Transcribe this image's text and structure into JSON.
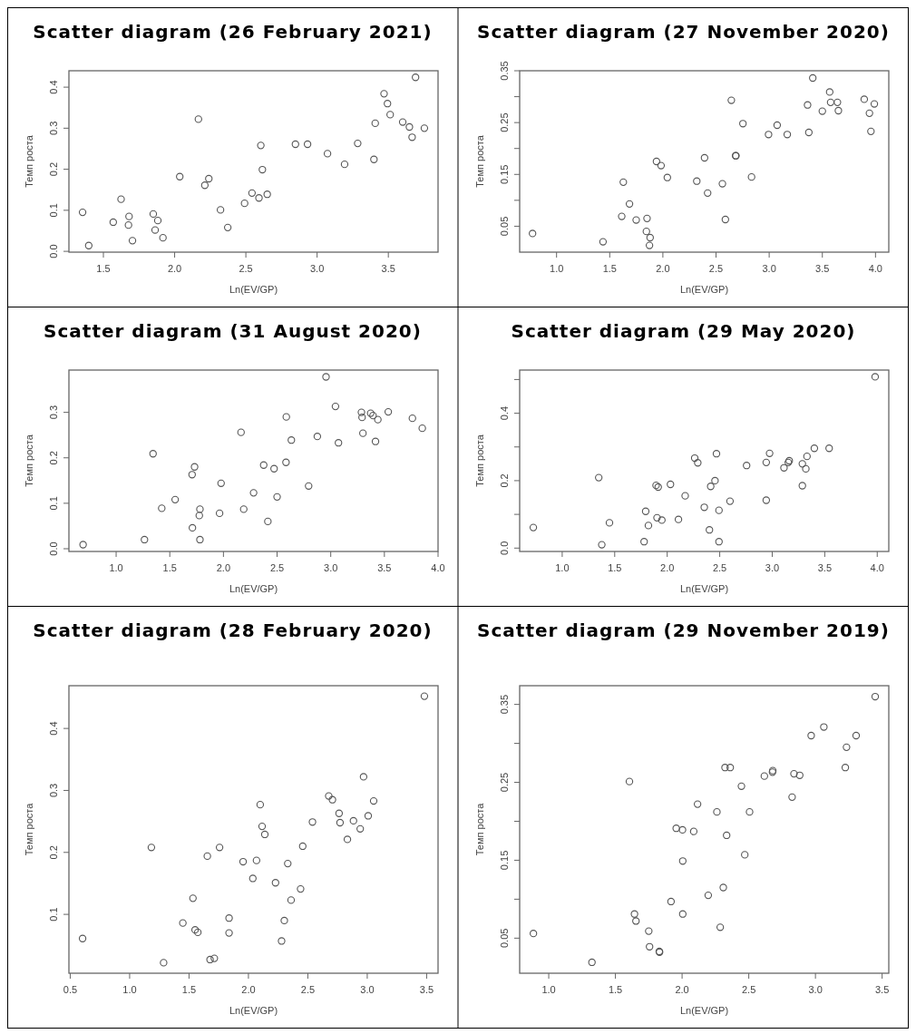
{
  "chart_data": [
    {
      "type": "scatter",
      "title": "Scatter diagram (26 February 2021)",
      "xlabel": "Ln(EV/GP)",
      "ylabel": "Темп роста",
      "color": "#555555",
      "marker": "circle",
      "x": [
        1.354,
        1.397,
        1.569,
        1.624,
        1.68,
        1.676,
        1.704,
        1.85,
        1.863,
        1.882,
        1.918,
        2.036,
        2.167,
        2.212,
        2.24,
        2.322,
        2.373,
        2.491,
        2.543,
        2.592,
        2.605,
        2.616,
        2.65,
        2.848,
        2.933,
        3.073,
        3.193,
        3.285,
        3.399,
        3.408,
        3.47,
        3.494,
        3.513,
        3.601,
        3.648,
        3.667,
        3.691,
        3.753
      ],
      "values": [
        0.095,
        0.014,
        0.071,
        0.127,
        0.085,
        0.064,
        0.026,
        0.091,
        0.052,
        0.075,
        0.033,
        0.182,
        0.322,
        0.161,
        0.177,
        0.101,
        0.058,
        0.117,
        0.142,
        0.13,
        0.258,
        0.199,
        0.139,
        0.261,
        0.261,
        0.238,
        0.212,
        0.263,
        0.224,
        0.312,
        0.384,
        0.36,
        0.333,
        0.315,
        0.303,
        0.278,
        0.424,
        0.3
      ],
      "xlim": [
        1.258,
        3.849
      ],
      "ylim": [
        -0.002,
        0.44
      ],
      "xticks": [
        1.5,
        {
          "value": 2,
          "label": "2.0"
        },
        2.5,
        {
          "value": 3,
          "label": "3.0"
        },
        3.5
      ],
      "yticks": [
        {
          "value": 0,
          "label": "0.0"
        },
        0.1,
        0.2,
        0.3,
        0.4
      ]
    },
    {
      "type": "scatter",
      "title": "Scatter diagram (27 November 2020)",
      "xlabel": "Ln(EV/GP)",
      "ylabel": "Темп роста",
      "color": "#555555",
      "marker": "circle",
      "x": [
        0.774,
        1.437,
        1.628,
        1.613,
        1.686,
        1.749,
        1.851,
        1.845,
        1.88,
        1.874,
        1.94,
        1.983,
        2.042,
        2.319,
        2.392,
        2.421,
        2.56,
        2.588,
        2.644,
        2.684,
        2.687,
        2.753,
        2.834,
        2.994,
        3.075,
        3.17,
        3.361,
        3.373,
        3.41,
        3.5,
        3.569,
        3.578,
        3.642,
        3.651,
        3.894,
        3.943,
        3.957,
        3.989
      ],
      "values": [
        0.036,
        0.02,
        0.135,
        0.069,
        0.093,
        0.062,
        0.065,
        0.04,
        0.028,
        0.013,
        0.175,
        0.167,
        0.144,
        0.137,
        0.182,
        0.114,
        0.132,
        0.063,
        0.293,
        0.186,
        0.186,
        0.248,
        0.145,
        0.227,
        0.245,
        0.227,
        0.284,
        0.231,
        0.336,
        0.272,
        0.309,
        0.289,
        0.289,
        0.273,
        0.295,
        0.268,
        0.233,
        0.286
      ],
      "xlim": [
        0.653,
        4.125
      ],
      "ylim": [
        0,
        0.35
      ],
      "xticks": [
        {
          "value": 1,
          "label": "1.0"
        },
        1.5,
        {
          "value": 2,
          "label": "2.0"
        },
        2.5,
        {
          "value": 3,
          "label": "3.0"
        },
        3.5,
        {
          "value": 4,
          "label": "4.0"
        }
      ],
      "yticks": [
        0.05,
        {
          "value": 0.1,
          "label": null
        },
        0.15,
        {
          "value": 0.2,
          "label": null
        },
        0.25,
        {
          "value": 0.3,
          "label": null
        },
        0.35
      ]
    },
    {
      "type": "scatter",
      "title": "Scatter diagram (31 August 2020)",
      "xlabel": "Ln(EV/GP)",
      "ylabel": "Темп роста",
      "color": "#555555",
      "marker": "circle",
      "x": [
        0.692,
        1.264,
        1.344,
        1.425,
        1.55,
        1.708,
        1.731,
        1.711,
        1.781,
        1.775,
        1.781,
        1.978,
        1.964,
        2.164,
        2.189,
        2.281,
        2.375,
        2.414,
        2.472,
        2.5,
        2.586,
        2.583,
        2.633,
        2.794,
        2.875,
        2.956,
        3.044,
        3.072,
        3.286,
        3.292,
        3.3,
        3.372,
        3.394,
        3.439,
        3.417,
        3.536,
        3.761,
        3.853
      ],
      "values": [
        0.009,
        0.02,
        0.209,
        0.089,
        0.108,
        0.163,
        0.18,
        0.046,
        0.087,
        0.073,
        0.02,
        0.144,
        0.078,
        0.256,
        0.087,
        0.123,
        0.184,
        0.06,
        0.176,
        0.114,
        0.29,
        0.19,
        0.239,
        0.138,
        0.247,
        0.378,
        0.313,
        0.233,
        0.3,
        0.289,
        0.254,
        0.298,
        0.293,
        0.284,
        0.236,
        0.301,
        0.287,
        0.265
      ],
      "xlim": [
        0.56,
        4.0
      ],
      "ylim": [
        -0.006,
        0.393
      ],
      "xticks": [
        {
          "value": 1,
          "label": "1.0"
        },
        1.5,
        {
          "value": 2,
          "label": "2.0"
        },
        2.5,
        {
          "value": 3,
          "label": "3.0"
        },
        3.5,
        {
          "value": 4,
          "label": "4.0"
        }
      ],
      "yticks": [
        {
          "value": 0,
          "label": "0.0"
        },
        0.1,
        0.2,
        0.3
      ]
    },
    {
      "type": "scatter",
      "title": "Scatter diagram (29 May 2020)",
      "xlabel": "Ln(EV/GP)",
      "ylabel": "Темп роста",
      "color": "#555555",
      "marker": "circle",
      "x": [
        0.725,
        1.348,
        1.377,
        1.45,
        1.78,
        1.795,
        1.821,
        1.894,
        1.914,
        1.903,
        1.949,
        2.031,
        2.107,
        2.171,
        2.262,
        2.291,
        2.353,
        2.402,
        2.414,
        2.455,
        2.469,
        2.493,
        2.493,
        2.598,
        2.756,
        2.943,
        2.943,
        2.975,
        3.112,
        3.162,
        3.153,
        3.287,
        3.287,
        3.32,
        3.331,
        3.401,
        3.542,
        3.98
      ],
      "values": [
        0.061,
        0.209,
        0.01,
        0.075,
        0.019,
        0.109,
        0.067,
        0.186,
        0.181,
        0.09,
        0.083,
        0.189,
        0.085,
        0.155,
        0.267,
        0.253,
        0.121,
        0.054,
        0.183,
        0.2,
        0.28,
        0.112,
        0.019,
        0.139,
        0.245,
        0.254,
        0.142,
        0.281,
        0.238,
        0.259,
        0.254,
        0.25,
        0.185,
        0.235,
        0.272,
        0.296,
        0.296,
        0.508
      ],
      "xlim": [
        0.595,
        4.11
      ],
      "ylim": [
        -0.01,
        0.528
      ],
      "xticks": [
        {
          "value": 1,
          "label": "1.0"
        },
        1.5,
        {
          "value": 2,
          "label": "2.0"
        },
        2.5,
        {
          "value": 3,
          "label": "3.0"
        },
        3.5,
        {
          "value": 4,
          "label": "4.0"
        }
      ],
      "yticks": [
        {
          "value": 0,
          "label": "0.0"
        },
        {
          "value": 0.1,
          "label": null
        },
        0.2,
        {
          "value": 0.3,
          "label": null
        },
        0.4,
        {
          "value": 0.5,
          "label": null
        }
      ]
    },
    {
      "type": "scatter",
      "title": "Scatter diagram (28 February 2020)",
      "xlabel": "Ln(EV/GP)",
      "ylabel": "Темп роста",
      "color": "#555555",
      "marker": "circle",
      "x": [
        0.604,
        1.183,
        1.286,
        1.448,
        1.533,
        1.551,
        1.574,
        1.654,
        1.677,
        1.713,
        1.757,
        1.837,
        1.837,
        1.955,
        2.037,
        2.068,
        2.099,
        2.115,
        2.138,
        2.228,
        2.279,
        2.302,
        2.331,
        2.359,
        2.439,
        2.457,
        2.539,
        2.676,
        2.707,
        2.763,
        2.771,
        2.833,
        2.884,
        2.941,
        2.969,
        3.008,
        3.054,
        3.481
      ],
      "values": [
        0.061,
        0.208,
        0.022,
        0.086,
        0.126,
        0.075,
        0.071,
        0.194,
        0.027,
        0.029,
        0.208,
        0.094,
        0.07,
        0.185,
        0.158,
        0.187,
        0.277,
        0.242,
        0.229,
        0.151,
        0.057,
        0.09,
        0.182,
        0.123,
        0.141,
        0.21,
        0.249,
        0.291,
        0.285,
        0.263,
        0.248,
        0.221,
        0.251,
        0.238,
        0.322,
        0.259,
        0.283,
        0.452
      ],
      "xlim": [
        0.489,
        3.596
      ],
      "ylim": [
        0.005,
        0.469
      ],
      "xticks": [
        0.5,
        {
          "value": 1,
          "label": "1.0"
        },
        1.5,
        {
          "value": 2,
          "label": "2.0"
        },
        2.5,
        {
          "value": 3,
          "label": "3.0"
        },
        3.5
      ],
      "yticks": [
        0.1,
        0.2,
        0.3,
        0.4
      ]
    },
    {
      "type": "scatter",
      "title": "Scatter diagram (29 November 2019)",
      "xlabel": "Ln(EV/GP)",
      "ylabel": "Темп роста",
      "color": "#555555",
      "marker": "circle",
      "x": [
        0.885,
        1.324,
        1.605,
        1.643,
        1.654,
        1.75,
        1.756,
        1.829,
        1.831,
        1.917,
        1.956,
        2.003,
        2.005,
        2.005,
        2.087,
        2.116,
        2.196,
        2.261,
        2.286,
        2.309,
        2.322,
        2.334,
        2.361,
        2.445,
        2.47,
        2.506,
        2.617,
        2.678,
        2.68,
        2.825,
        2.839,
        2.882,
        2.968,
        3.063,
        3.224,
        3.233,
        3.305,
        3.448
      ],
      "values": [
        0.056,
        0.019,
        0.251,
        0.081,
        0.072,
        0.059,
        0.039,
        0.033,
        0.032,
        0.097,
        0.191,
        0.189,
        0.149,
        0.081,
        0.187,
        0.222,
        0.105,
        0.212,
        0.064,
        0.115,
        0.269,
        0.182,
        0.269,
        0.245,
        0.157,
        0.212,
        0.258,
        0.263,
        0.265,
        0.231,
        0.261,
        0.259,
        0.31,
        0.321,
        0.269,
        0.295,
        0.31,
        0.36
      ],
      "xlim": [
        0.782,
        3.55
      ],
      "ylim": [
        0.005,
        0.374
      ],
      "xticks": [
        {
          "value": 1,
          "label": "1.0"
        },
        1.5,
        {
          "value": 2,
          "label": "2.0"
        },
        2.5,
        {
          "value": 3,
          "label": "3.0"
        },
        3.5
      ],
      "yticks": [
        0.05,
        {
          "value": 0.1,
          "label": null
        },
        0.15,
        {
          "value": 0.2,
          "label": null
        },
        0.25,
        {
          "value": 0.3,
          "label": null
        },
        0.35
      ]
    }
  ]
}
